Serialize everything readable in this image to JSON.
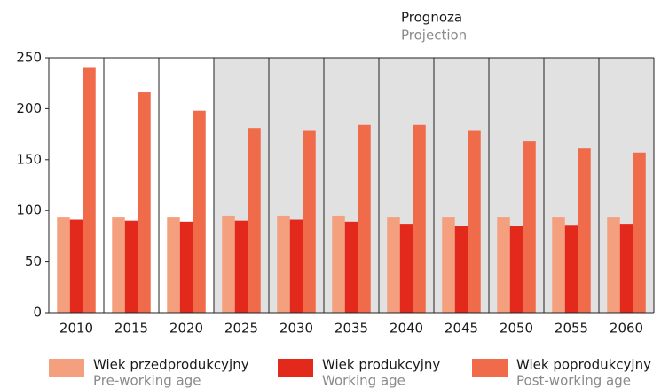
{
  "chart_data": {
    "type": "bar",
    "annotation": "Prognoza",
    "annotation_en": "Projection",
    "projection_from": "2025",
    "categories": [
      "2010",
      "2015",
      "2020",
      "2025",
      "2030",
      "2035",
      "2040",
      "2045",
      "2050",
      "2055",
      "2060"
    ],
    "series": [
      {
        "name": "Wiek przedprodukcyjny",
        "name_en": "Pre-working age",
        "color": "#f4a07f",
        "values": [
          94,
          94,
          94,
          95,
          95,
          95,
          94,
          94,
          94,
          94,
          94
        ]
      },
      {
        "name": "Wiek produkcyjny",
        "name_en": "Working age",
        "color": "#e3281c",
        "values": [
          91,
          90,
          89,
          90,
          91,
          89,
          87,
          85,
          85,
          86,
          87
        ]
      },
      {
        "name": "Wiek poprodukcyjny",
        "name_en": "Post-working age",
        "color": "#ef6b4a",
        "values": [
          240,
          216,
          198,
          181,
          179,
          184,
          184,
          179,
          168,
          161,
          157
        ]
      }
    ],
    "ylim": [
      0,
      250
    ],
    "yticks": [
      0,
      50,
      100,
      150,
      200,
      250
    ]
  }
}
